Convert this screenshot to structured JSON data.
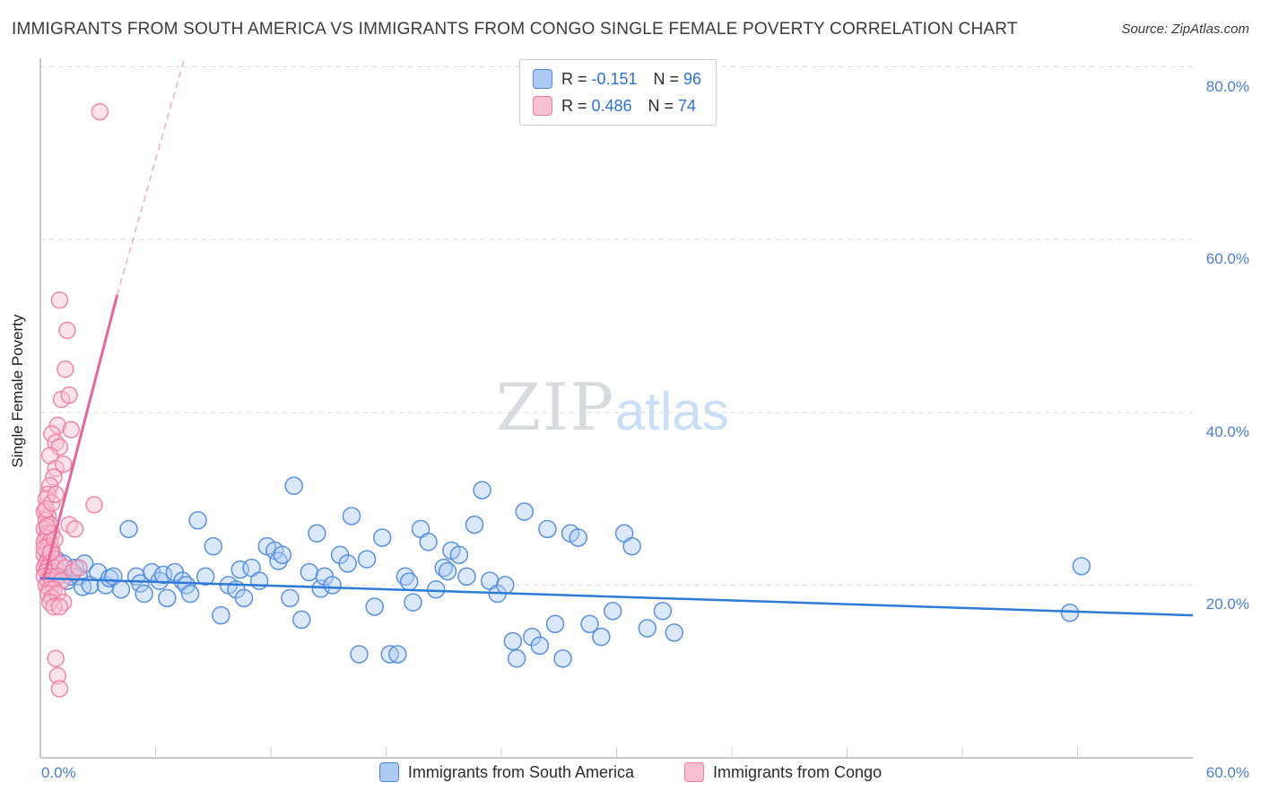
{
  "header": {
    "title": "IMMIGRANTS FROM SOUTH AMERICA VS IMMIGRANTS FROM CONGO SINGLE FEMALE POVERTY CORRELATION CHART",
    "source": "Source: ZipAtlas.com"
  },
  "watermark": {
    "zip": "ZIP",
    "atlas": "atlas"
  },
  "stats_legend": {
    "series": [
      {
        "r_label": "R = ",
        "r_value": "-0.151",
        "n_label": "N = ",
        "n_value": "96"
      },
      {
        "r_label": "R = ",
        "r_value": "0.486",
        "n_label": "N = ",
        "n_value": "74"
      }
    ]
  },
  "axes": {
    "y_label": "Single Female Poverty",
    "x_left_label": "0.0%",
    "x_right_label": "60.0%",
    "y_ticks": [
      {
        "value": 80,
        "label": "80.0%"
      },
      {
        "value": 60,
        "label": "60.0%"
      },
      {
        "value": 40,
        "label": "40.0%"
      },
      {
        "value": 20,
        "label": "20.0%"
      }
    ]
  },
  "bottom_legend": [
    {
      "label": "Immigrants from South America"
    },
    {
      "label": "Immigrants from Congo"
    }
  ],
  "chart_data": {
    "type": "scatter",
    "title": "Immigrants from South America vs Immigrants from Congo Single Female Poverty",
    "xlabel": "",
    "ylabel": "Single Female Poverty",
    "xlim": [
      0,
      60
    ],
    "ylim": [
      0,
      81
    ],
    "grid_y": [
      20,
      40,
      60,
      80
    ],
    "x_tick_step": 6,
    "grid": true,
    "legend_position": "bottom",
    "series": [
      {
        "name": "Immigrants from South America",
        "r": -0.151,
        "n": 96,
        "color": "#4a86d8",
        "fill": "#aecbf5",
        "trend_color": "#2e7bd6",
        "point_radius": 9.5,
        "trend": {
          "x1": 0,
          "y1": 20.8,
          "x2": 60,
          "y2": 16.5
        },
        "points": [
          [
            0.4,
            22.0
          ],
          [
            0.6,
            21.0
          ],
          [
            0.8,
            23.0
          ],
          [
            1.0,
            21.5
          ],
          [
            1.2,
            22.5
          ],
          [
            1.4,
            20.5
          ],
          [
            1.6,
            21.0
          ],
          [
            1.8,
            22.0
          ],
          [
            2.0,
            21.0
          ],
          [
            2.2,
            19.8
          ],
          [
            2.3,
            22.5
          ],
          [
            2.6,
            20.0
          ],
          [
            3.0,
            21.5
          ],
          [
            3.4,
            20.0
          ],
          [
            3.6,
            20.8
          ],
          [
            3.8,
            21.0
          ],
          [
            4.2,
            19.5
          ],
          [
            4.6,
            26.5
          ],
          [
            5.0,
            21.0
          ],
          [
            5.2,
            20.2
          ],
          [
            5.4,
            19.0
          ],
          [
            5.8,
            21.5
          ],
          [
            6.2,
            20.5
          ],
          [
            6.4,
            21.2
          ],
          [
            6.6,
            18.5
          ],
          [
            7.0,
            21.5
          ],
          [
            7.4,
            20.5
          ],
          [
            7.6,
            20.0
          ],
          [
            7.8,
            19.0
          ],
          [
            8.2,
            27.5
          ],
          [
            8.6,
            21.0
          ],
          [
            9.0,
            24.5
          ],
          [
            9.4,
            16.5
          ],
          [
            9.8,
            20.0
          ],
          [
            10.2,
            19.5
          ],
          [
            10.4,
            21.8
          ],
          [
            10.6,
            18.5
          ],
          [
            11.0,
            22.0
          ],
          [
            11.4,
            20.5
          ],
          [
            11.8,
            24.5
          ],
          [
            12.2,
            24.0
          ],
          [
            12.4,
            22.8
          ],
          [
            12.6,
            23.5
          ],
          [
            13.0,
            18.5
          ],
          [
            13.2,
            31.5
          ],
          [
            13.6,
            16.0
          ],
          [
            14.0,
            21.5
          ],
          [
            14.4,
            26.0
          ],
          [
            14.6,
            19.6
          ],
          [
            14.8,
            21.0
          ],
          [
            15.2,
            20.0
          ],
          [
            15.6,
            23.5
          ],
          [
            16.0,
            22.5
          ],
          [
            16.2,
            28.0
          ],
          [
            16.6,
            12.0
          ],
          [
            17.0,
            23.0
          ],
          [
            17.4,
            17.5
          ],
          [
            17.8,
            25.5
          ],
          [
            18.2,
            12.0
          ],
          [
            18.6,
            12.0
          ],
          [
            19.0,
            21.0
          ],
          [
            19.2,
            20.4
          ],
          [
            19.4,
            18.0
          ],
          [
            19.8,
            26.5
          ],
          [
            20.2,
            25.0
          ],
          [
            20.6,
            19.5
          ],
          [
            21.0,
            22.0
          ],
          [
            21.2,
            21.6
          ],
          [
            21.4,
            24.0
          ],
          [
            21.8,
            23.5
          ],
          [
            22.2,
            21.0
          ],
          [
            22.6,
            27.0
          ],
          [
            23.0,
            31.0
          ],
          [
            23.4,
            20.5
          ],
          [
            23.8,
            19.0
          ],
          [
            24.2,
            20.0
          ],
          [
            24.6,
            13.5
          ],
          [
            24.8,
            11.5
          ],
          [
            25.2,
            28.5
          ],
          [
            25.6,
            14.0
          ],
          [
            26.0,
            13.0
          ],
          [
            26.4,
            26.5
          ],
          [
            26.8,
            15.5
          ],
          [
            27.2,
            11.5
          ],
          [
            27.6,
            26.0
          ],
          [
            28.0,
            25.5
          ],
          [
            28.6,
            15.5
          ],
          [
            29.2,
            14.0
          ],
          [
            29.8,
            17.0
          ],
          [
            30.4,
            26.0
          ],
          [
            30.8,
            24.5
          ],
          [
            31.6,
            15.0
          ],
          [
            32.4,
            17.0
          ],
          [
            33.0,
            14.5
          ],
          [
            53.6,
            16.8
          ],
          [
            54.2,
            22.2
          ]
        ]
      },
      {
        "name": "Immigrants from Congo",
        "r": 0.486,
        "n": 74,
        "color": "#ef7ba3",
        "fill": "#f9c0d2",
        "trend_color": "#e8649a",
        "point_radius": 9,
        "trend": {
          "x1": 0.15,
          "y1": 20.5,
          "x2": 4.0,
          "y2": 53.6
        },
        "trend_dashed": {
          "x1": 4.0,
          "y1": 53.6,
          "x2": 7.5,
          "y2": 81.0
        },
        "points": [
          [
            3.1,
            74.8
          ],
          [
            1.0,
            53.0
          ],
          [
            1.4,
            49.5
          ],
          [
            1.3,
            45.0
          ],
          [
            1.1,
            41.5
          ],
          [
            1.5,
            42.0
          ],
          [
            0.9,
            38.5
          ],
          [
            1.6,
            38.0
          ],
          [
            0.6,
            37.5
          ],
          [
            0.8,
            36.5
          ],
          [
            1.0,
            36.0
          ],
          [
            0.5,
            35.0
          ],
          [
            0.8,
            33.5
          ],
          [
            1.2,
            34.0
          ],
          [
            0.7,
            32.5
          ],
          [
            0.5,
            31.5
          ],
          [
            0.4,
            30.5
          ],
          [
            0.3,
            30.0
          ],
          [
            2.8,
            29.3
          ],
          [
            0.2,
            28.5
          ],
          [
            0.4,
            28.0
          ],
          [
            0.3,
            27.5
          ],
          [
            0.5,
            27.0
          ],
          [
            1.5,
            27.0
          ],
          [
            0.2,
            26.5
          ],
          [
            0.4,
            26.0
          ],
          [
            0.6,
            26.0
          ],
          [
            0.3,
            25.5
          ],
          [
            0.2,
            25.0
          ],
          [
            0.5,
            25.0
          ],
          [
            0.4,
            24.5
          ],
          [
            0.3,
            24.0
          ],
          [
            0.6,
            24.0
          ],
          [
            0.2,
            23.5
          ],
          [
            0.4,
            23.0
          ],
          [
            0.7,
            23.0
          ],
          [
            0.3,
            22.5
          ],
          [
            0.5,
            22.5
          ],
          [
            0.2,
            22.0
          ],
          [
            0.4,
            22.0
          ],
          [
            0.6,
            21.5
          ],
          [
            0.8,
            22.0
          ],
          [
            1.0,
            22.5
          ],
          [
            1.3,
            22.0
          ],
          [
            1.7,
            21.5
          ],
          [
            2.0,
            22.0
          ],
          [
            0.3,
            21.5
          ],
          [
            0.5,
            21.0
          ],
          [
            0.2,
            21.0
          ],
          [
            0.4,
            20.5
          ],
          [
            0.6,
            20.5
          ],
          [
            0.9,
            21.0
          ],
          [
            1.1,
            20.5
          ],
          [
            0.3,
            20.0
          ],
          [
            0.5,
            19.5
          ],
          [
            0.7,
            19.5
          ],
          [
            0.4,
            19.0
          ],
          [
            0.6,
            18.5
          ],
          [
            0.9,
            19.0
          ],
          [
            1.2,
            18.0
          ],
          [
            0.5,
            18.0
          ],
          [
            0.7,
            17.5
          ],
          [
            1.0,
            17.5
          ],
          [
            0.8,
            11.5
          ],
          [
            0.9,
            9.5
          ],
          [
            1.0,
            8.0
          ],
          [
            0.3,
            28.8
          ],
          [
            0.6,
            29.5
          ],
          [
            0.8,
            30.5
          ],
          [
            0.2,
            24.3
          ],
          [
            0.35,
            26.8
          ],
          [
            0.55,
            23.8
          ],
          [
            0.75,
            25.3
          ],
          [
            1.8,
            26.5
          ]
        ]
      }
    ]
  }
}
